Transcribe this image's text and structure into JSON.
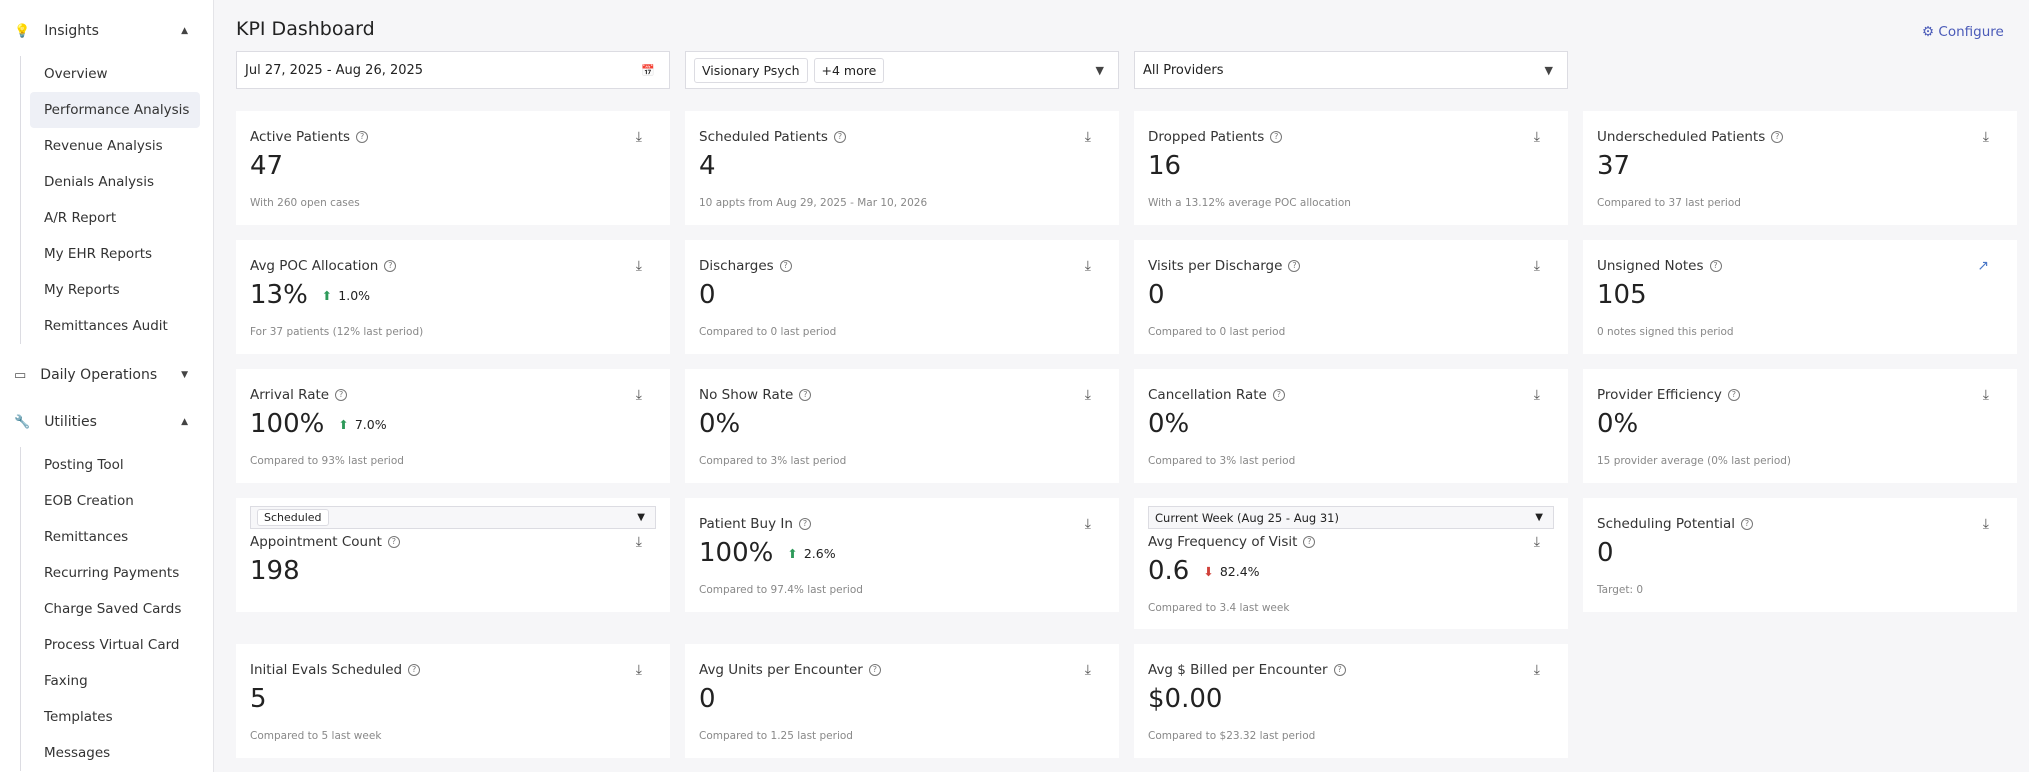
{
  "sidebar": {
    "sections": [
      {
        "title": "Insights",
        "items": [
          "Overview",
          "Performance Analysis",
          "Revenue Analysis",
          "Denials Analysis",
          "A/R Report",
          "My EHR Reports",
          "My Reports",
          "Remittances Audit"
        ],
        "active": 1
      },
      {
        "title": "Daily Operations",
        "items": []
      },
      {
        "title": "Utilities",
        "items": [
          "Posting Tool",
          "EOB Creation",
          "Remittances",
          "Recurring Payments",
          "Charge Saved Cards",
          "Process Virtual Card",
          "Faxing",
          "Templates",
          "Messages"
        ]
      }
    ]
  },
  "header": {
    "title": "KPI Dashboard",
    "configure": "Configure"
  },
  "filters": {
    "date_range": "Jul 27, 2025 - Aug 26, 2025",
    "location": "Visionary Psych",
    "more": "+4 more",
    "providers": "All Providers"
  },
  "cards": [
    {
      "title": "Active Patients",
      "value": "47",
      "note": "With 260 open cases"
    },
    {
      "title": "Scheduled Patients",
      "value": "4",
      "note": "10 appts from Aug 29, 2025 - Mar 10, 2026"
    },
    {
      "title": "Dropped Patients",
      "value": "16",
      "note": "With a 13.12% average POC allocation"
    },
    {
      "title": "Underscheduled Patients",
      "value": "37",
      "note": "Compared to 37 last period"
    },
    {
      "title": "Avg POC Allocation",
      "value": "13%",
      "change": "1.0%",
      "direction": "up",
      "note": "For 37 patients (12% last period)"
    },
    {
      "title": "Discharges",
      "value": "0",
      "note": "Compared to 0 last period"
    },
    {
      "title": "Visits per Discharge",
      "value": "0",
      "note": "Compared to 0 last period"
    },
    {
      "title": "Unsigned Notes",
      "value": "105",
      "note": "0 notes signed this period",
      "link": true
    },
    {
      "title": "Arrival Rate",
      "value": "100%",
      "change": "7.0%",
      "direction": "up",
      "note": "Compared to 93% last period"
    },
    {
      "title": "No Show Rate",
      "value": "0%",
      "note": "Compared to 3% last period"
    },
    {
      "title": "Cancellation Rate",
      "value": "0%",
      "note": "Compared to 3% last period"
    },
    {
      "title": "Provider Efficiency",
      "value": "0%",
      "note": "15 provider average (0% last period)"
    },
    {
      "title": "Appointment Count",
      "value": "198",
      "dropdown": "Scheduled",
      "dropdown_chip": true
    },
    {
      "title": "Patient Buy In",
      "value": "100%",
      "change": "2.6%",
      "direction": "up",
      "note": "Compared to 97.4% last period"
    },
    {
      "title": "Avg Frequency of Visit",
      "value": "0.6",
      "change": "82.4%",
      "direction": "down",
      "note": "Compared to 3.4 last week",
      "dropdown": "Current Week (Aug 25 - Aug 31)"
    },
    {
      "title": "Scheduling Potential",
      "value": "0",
      "note": "Target: 0"
    },
    {
      "title": "Initial Evals Scheduled",
      "value": "5",
      "note": "Compared to 5 last week"
    },
    {
      "title": "Avg Units per Encounter",
      "value": "0",
      "note": "Compared to 1.25 last period"
    },
    {
      "title": "Avg $ Billed per Encounter",
      "value": "$0.00",
      "note": "Compared to $23.32 last period"
    }
  ]
}
